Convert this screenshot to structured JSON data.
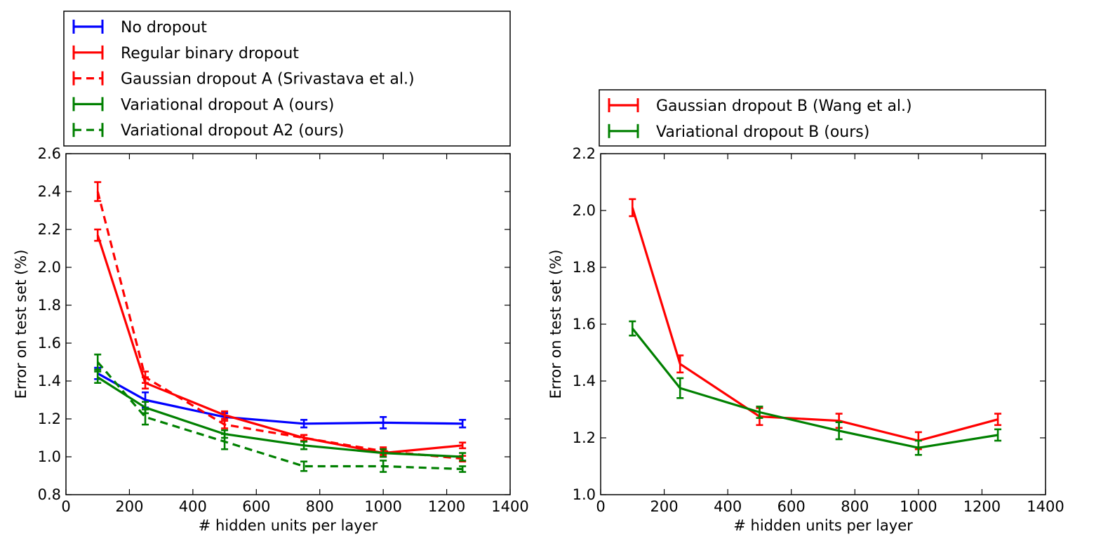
{
  "chart_data": [
    {
      "type": "line",
      "xlabel": "# hidden units per layer",
      "ylabel": "Error on test set (%)",
      "xlim": [
        0,
        1400
      ],
      "ylim": [
        0.8,
        2.6
      ],
      "xticks": [
        "0",
        "200",
        "400",
        "600",
        "800",
        "1000",
        "1200",
        "1400"
      ],
      "yticks": [
        "0.8",
        "1.0",
        "1.2",
        "1.4",
        "1.6",
        "1.8",
        "2.0",
        "2.2",
        "2.4",
        "2.6"
      ],
      "grid": false,
      "legend_position": "above",
      "x": [
        100,
        250,
        500,
        750,
        1000,
        1250
      ],
      "series": [
        {
          "name": "No dropout",
          "color": "#0000ff",
          "dash": "solid",
          "values": [
            1.44,
            1.3,
            1.21,
            1.175,
            1.18,
            1.175
          ],
          "errors": [
            0.03,
            0.04,
            0.02,
            0.02,
            0.03,
            0.02
          ]
        },
        {
          "name": "Regular binary dropout",
          "color": "#ff0000",
          "dash": "solid",
          "values": [
            2.17,
            1.39,
            1.22,
            1.1,
            1.02,
            1.06
          ],
          "errors": [
            0.03,
            0.03,
            0.02,
            0.015,
            0.02,
            0.015
          ]
        },
        {
          "name": "Gaussian dropout A (Srivastava et al.)",
          "color": "#ff0000",
          "dash": "dashed",
          "values": [
            2.4,
            1.42,
            1.17,
            1.1,
            1.03,
            0.99
          ],
          "errors": [
            0.05,
            0.03,
            0.02,
            0.015,
            0.02,
            0.015
          ]
        },
        {
          "name": "Variational dropout A (ours)",
          "color": "#008000",
          "dash": "solid",
          "values": [
            1.42,
            1.26,
            1.12,
            1.06,
            1.02,
            1.0
          ],
          "errors": [
            0.03,
            0.03,
            0.02,
            0.02,
            0.02,
            0.02
          ]
        },
        {
          "name": "Variational dropout A2 (ours)",
          "color": "#008000",
          "dash": "dashed",
          "values": [
            1.5,
            1.21,
            1.08,
            0.95,
            0.95,
            0.935
          ],
          "errors": [
            0.04,
            0.04,
            0.04,
            0.025,
            0.03,
            0.015
          ]
        }
      ]
    },
    {
      "type": "line",
      "xlabel": "# hidden units per layer",
      "ylabel": "Error on test set (%)",
      "xlim": [
        0,
        1400
      ],
      "ylim": [
        1.0,
        2.2
      ],
      "xticks": [
        "0",
        "200",
        "400",
        "600",
        "800",
        "1000",
        "1200",
        "1400"
      ],
      "yticks": [
        "1.0",
        "1.2",
        "1.4",
        "1.6",
        "1.8",
        "2.0",
        "2.2"
      ],
      "grid": false,
      "legend_position": "above",
      "x": [
        100,
        250,
        500,
        750,
        1000,
        1250
      ],
      "series": [
        {
          "name": "Gaussian dropout B (Wang et al.)",
          "color": "#ff0000",
          "dash": "solid",
          "values": [
            2.01,
            1.46,
            1.275,
            1.26,
            1.19,
            1.265
          ],
          "errors": [
            0.03,
            0.03,
            0.03,
            0.025,
            0.03,
            0.02
          ]
        },
        {
          "name": "Variational dropout B (ours)",
          "color": "#008000",
          "dash": "solid",
          "values": [
            1.585,
            1.375,
            1.29,
            1.225,
            1.165,
            1.21
          ],
          "errors": [
            0.025,
            0.035,
            0.02,
            0.03,
            0.025,
            0.02
          ]
        }
      ]
    }
  ]
}
